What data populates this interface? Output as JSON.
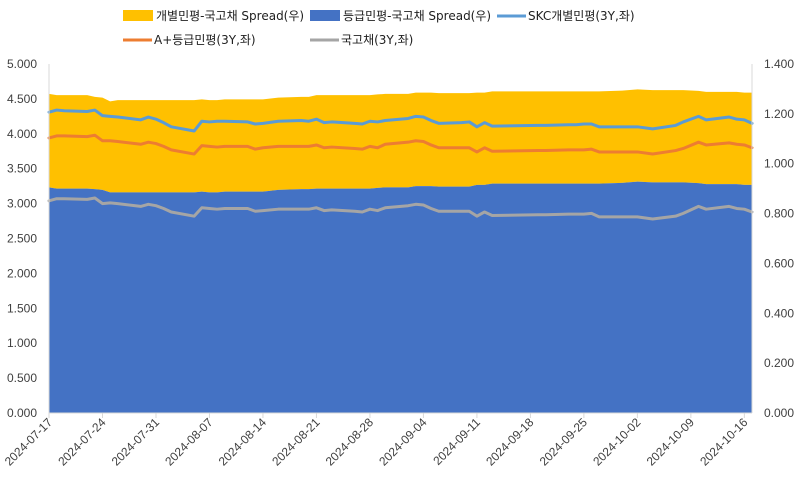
{
  "chart_data": {
    "type": "area",
    "title": "",
    "xlabel": "",
    "ylabel": "",
    "ylim_left": [
      0,
      5
    ],
    "ylim_right": [
      0,
      1.4
    ],
    "y_ticks_left": [
      "0.000",
      "0.500",
      "1.000",
      "1.500",
      "2.000",
      "2.500",
      "3.000",
      "3.500",
      "4.000",
      "4.500",
      "5.000"
    ],
    "y_ticks_right": [
      "0.000",
      "0.200",
      "0.400",
      "0.600",
      "0.800",
      "1.000",
      "1.200",
      "1.400"
    ],
    "x_tick_labels": [
      "2024-07-17",
      "2024-07-24",
      "2024-07-31",
      "2024-08-07",
      "2024-08-14",
      "2024-08-21",
      "2024-08-28",
      "2024-09-04",
      "2024-09-11",
      "2024-09-18",
      "2024-09-25",
      "2024-10-02",
      "2024-10-09",
      "2024-10-16"
    ],
    "grid": false,
    "legend_position": "top",
    "dates": [
      "2024-07-17",
      "2024-07-18",
      "2024-07-19",
      "2024-07-22",
      "2024-07-23",
      "2024-07-24",
      "2024-07-25",
      "2024-07-26",
      "2024-07-29",
      "2024-07-30",
      "2024-07-31",
      "2024-08-01",
      "2024-08-02",
      "2024-08-05",
      "2024-08-06",
      "2024-08-07",
      "2024-08-08",
      "2024-08-09",
      "2024-08-12",
      "2024-08-13",
      "2024-08-14",
      "2024-08-16",
      "2024-08-19",
      "2024-08-20",
      "2024-08-21",
      "2024-08-22",
      "2024-08-23",
      "2024-08-26",
      "2024-08-27",
      "2024-08-28",
      "2024-08-29",
      "2024-08-30",
      "2024-09-02",
      "2024-09-03",
      "2024-09-04",
      "2024-09-05",
      "2024-09-06",
      "2024-09-09",
      "2024-09-10",
      "2024-09-11",
      "2024-09-12",
      "2024-09-13",
      "2024-09-19",
      "2024-09-20",
      "2024-09-23",
      "2024-09-24",
      "2024-09-25",
      "2024-09-26",
      "2024-09-27",
      "2024-09-30",
      "2024-10-02",
      "2024-10-04",
      "2024-10-07",
      "2024-10-08",
      "2024-10-10",
      "2024-10-11",
      "2024-10-14",
      "2024-10-15",
      "2024-10-16",
      "2024-10-17"
    ],
    "series": [
      {
        "name": "개별민평-국고채 Spread(우)",
        "kind": "area-stacked",
        "axis": "right",
        "color": "#FFC000",
        "values": [
          0.375,
          0.375,
          0.375,
          0.375,
          0.37,
          0.37,
          0.365,
          0.37,
          0.37,
          0.37,
          0.37,
          0.37,
          0.37,
          0.37,
          0.37,
          0.37,
          0.37,
          0.37,
          0.37,
          0.37,
          0.37,
          0.37,
          0.37,
          0.37,
          0.375,
          0.375,
          0.375,
          0.375,
          0.375,
          0.375,
          0.375,
          0.375,
          0.375,
          0.375,
          0.375,
          0.375,
          0.375,
          0.375,
          0.375,
          0.37,
          0.37,
          0.37,
          0.37,
          0.37,
          0.37,
          0.37,
          0.37,
          0.37,
          0.37,
          0.37,
          0.37,
          0.37,
          0.37,
          0.37,
          0.37,
          0.37,
          0.37,
          0.37,
          0.37,
          0.37
        ]
      },
      {
        "name": "등급민평-국고채 Spread(우)",
        "kind": "area",
        "axis": "right",
        "color": "#4472C4",
        "values": [
          0.905,
          0.9,
          0.9,
          0.9,
          0.898,
          0.895,
          0.885,
          0.885,
          0.885,
          0.885,
          0.885,
          0.885,
          0.885,
          0.885,
          0.888,
          0.885,
          0.885,
          0.888,
          0.888,
          0.888,
          0.888,
          0.895,
          0.898,
          0.898,
          0.9,
          0.9,
          0.9,
          0.9,
          0.9,
          0.9,
          0.903,
          0.905,
          0.905,
          0.91,
          0.91,
          0.91,
          0.908,
          0.908,
          0.908,
          0.915,
          0.915,
          0.92,
          0.92,
          0.92,
          0.92,
          0.92,
          0.92,
          0.92,
          0.92,
          0.923,
          0.928,
          0.925,
          0.925,
          0.925,
          0.922,
          0.918,
          0.918,
          0.918,
          0.915,
          0.915
        ]
      },
      {
        "name": "SKC개별민평(3Y,좌)",
        "kind": "line",
        "axis": "left",
        "color": "#5B9BD5",
        "values": [
          4.31,
          4.34,
          4.33,
          4.32,
          4.34,
          4.26,
          4.25,
          4.24,
          4.2,
          4.24,
          4.21,
          4.16,
          4.1,
          4.04,
          4.18,
          4.17,
          4.18,
          4.18,
          4.17,
          4.14,
          4.15,
          4.18,
          4.19,
          4.18,
          4.21,
          4.16,
          4.17,
          4.15,
          4.14,
          4.18,
          4.17,
          4.19,
          4.22,
          4.25,
          4.24,
          4.19,
          4.15,
          4.16,
          4.17,
          4.1,
          4.16,
          4.11,
          4.12,
          4.12,
          4.13,
          4.13,
          4.14,
          4.14,
          4.1,
          4.1,
          4.1,
          4.07,
          4.12,
          4.17,
          4.25,
          4.2,
          4.24,
          4.21,
          4.2,
          4.15
        ]
      },
      {
        "name": "A+등급민평(3Y,좌)",
        "kind": "line",
        "axis": "left",
        "color": "#ED7D31",
        "values": [
          3.94,
          3.97,
          3.97,
          3.96,
          3.98,
          3.9,
          3.9,
          3.89,
          3.85,
          3.88,
          3.86,
          3.82,
          3.77,
          3.71,
          3.83,
          3.82,
          3.81,
          3.82,
          3.82,
          3.78,
          3.8,
          3.82,
          3.82,
          3.82,
          3.84,
          3.8,
          3.81,
          3.79,
          3.78,
          3.82,
          3.8,
          3.85,
          3.88,
          3.9,
          3.89,
          3.84,
          3.8,
          3.8,
          3.8,
          3.74,
          3.8,
          3.75,
          3.76,
          3.76,
          3.77,
          3.77,
          3.77,
          3.78,
          3.74,
          3.74,
          3.74,
          3.71,
          3.76,
          3.79,
          3.88,
          3.84,
          3.87,
          3.85,
          3.84,
          3.8
        ]
      },
      {
        "name": "국고채(3Y,좌)",
        "kind": "line",
        "axis": "left",
        "color": "#A5A5A5",
        "values": [
          3.04,
          3.07,
          3.07,
          3.06,
          3.08,
          3.0,
          3.01,
          3.0,
          2.96,
          2.99,
          2.97,
          2.93,
          2.88,
          2.82,
          2.94,
          2.93,
          2.92,
          2.93,
          2.93,
          2.89,
          2.9,
          2.92,
          2.92,
          2.92,
          2.94,
          2.9,
          2.91,
          2.89,
          2.88,
          2.92,
          2.9,
          2.94,
          2.97,
          2.99,
          2.98,
          2.93,
          2.89,
          2.89,
          2.89,
          2.82,
          2.88,
          2.83,
          2.84,
          2.84,
          2.85,
          2.85,
          2.85,
          2.86,
          2.81,
          2.81,
          2.81,
          2.78,
          2.82,
          2.86,
          2.96,
          2.92,
          2.96,
          2.93,
          2.92,
          2.88
        ]
      }
    ]
  }
}
